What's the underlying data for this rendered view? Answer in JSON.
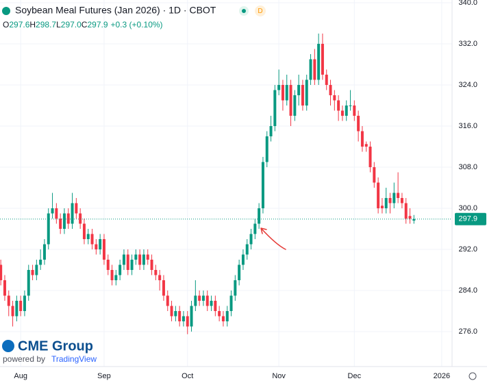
{
  "chart_data": {
    "type": "candlestick",
    "title": "Soybean Meal Futures (Jan 2026) · 1D · CBOT",
    "interval_badge": "D",
    "ohlc_legend": [
      {
        "key": "O",
        "value": "297.6"
      },
      {
        "key": "H",
        "value": "298.7"
      },
      {
        "key": "L",
        "value": "297.0"
      },
      {
        "key": "C",
        "value": "297.9"
      }
    ],
    "change": "+0.3 (+0.10%)",
    "up_color": "#089981",
    "down_color": "#f23645",
    "open": [
      289,
      286,
      283,
      281,
      279,
      282,
      280,
      283,
      288,
      287,
      289,
      290,
      293,
      299,
      300,
      298,
      296,
      299,
      297,
      301,
      299,
      297,
      294,
      295,
      293,
      292,
      294,
      290,
      288,
      286,
      287,
      289,
      291,
      288,
      290,
      291,
      289,
      291,
      290,
      288,
      287,
      286,
      283,
      281,
      279,
      280,
      278,
      279,
      277,
      281,
      283,
      282,
      283,
      281,
      282,
      280,
      279,
      278,
      280,
      283,
      286,
      289,
      291,
      293,
      295,
      297,
      300,
      309,
      314,
      316,
      323,
      324,
      321,
      324,
      318,
      322,
      324,
      320,
      325,
      329,
      325,
      332,
      326,
      324,
      322,
      321,
      319,
      318,
      320,
      320,
      318,
      315,
      312.5,
      312,
      308,
      305,
      300.5,
      300,
      302,
      301,
      303,
      302,
      301,
      298.5,
      297.6
    ],
    "high": [
      290,
      287,
      284,
      282,
      283,
      283,
      284,
      289,
      289,
      290,
      292,
      294,
      300,
      303,
      301,
      299,
      300,
      300,
      303,
      302,
      300,
      298,
      296,
      296,
      294,
      295,
      295,
      291,
      289,
      288,
      290,
      292,
      292,
      291,
      292,
      292,
      292,
      292,
      291,
      289,
      288,
      287,
      284,
      282,
      281,
      281,
      280,
      280,
      282,
      286,
      284,
      284,
      284,
      283,
      283,
      281,
      280,
      281,
      284,
      287,
      290,
      292,
      294,
      296,
      298,
      301,
      310,
      315,
      318,
      324,
      327,
      325,
      326,
      325,
      323,
      326,
      325,
      326,
      330,
      331,
      334,
      334,
      327,
      325,
      323,
      322,
      320,
      321,
      323,
      321,
      319,
      316,
      313,
      313,
      309,
      306,
      302,
      304,
      303,
      305,
      307,
      303,
      302,
      300,
      298.7
    ],
    "low": [
      285,
      282,
      279,
      277,
      278,
      279,
      279,
      282,
      286,
      286,
      288,
      289,
      292,
      298,
      297,
      295,
      295,
      296,
      296,
      298,
      296,
      293,
      293,
      292,
      291,
      291,
      289,
      287,
      285,
      285,
      286,
      288,
      287,
      287,
      289,
      288,
      288,
      289,
      287,
      286,
      284,
      282,
      280,
      278,
      278,
      277,
      277,
      275.5,
      276,
      280,
      281,
      281,
      280,
      280,
      279,
      278,
      277,
      277,
      279,
      282,
      285,
      288,
      290,
      292,
      294,
      296,
      299,
      308,
      313,
      315,
      322,
      319,
      320,
      316,
      317,
      320,
      319,
      319,
      324,
      324,
      324,
      325,
      323,
      320,
      319,
      317,
      317,
      317,
      319,
      317,
      313,
      311,
      311,
      307,
      304,
      299,
      299,
      299,
      299,
      300,
      301,
      300,
      297,
      297,
      297
    ],
    "close": [
      286,
      283,
      281,
      279,
      282,
      280,
      283,
      288,
      287,
      289,
      290,
      293,
      299,
      300,
      298,
      296,
      299,
      297,
      301,
      299,
      297,
      294,
      295,
      293,
      292,
      294,
      290,
      288,
      286,
      287,
      289,
      291,
      288,
      290,
      291,
      289,
      291,
      290,
      288,
      287,
      286,
      283,
      281,
      279,
      280,
      278,
      279,
      277,
      281,
      283,
      282,
      283,
      281,
      282,
      280,
      279,
      278,
      280,
      283,
      286,
      289,
      291,
      293,
      295,
      297,
      300,
      309,
      314,
      316,
      323,
      324,
      321,
      324,
      318,
      322,
      324,
      320,
      325,
      329,
      325,
      332,
      326,
      324,
      322,
      321,
      319,
      318,
      320,
      320,
      318,
      315,
      312,
      312,
      308,
      305,
      300,
      300,
      302,
      301,
      303,
      302,
      301,
      298,
      298,
      297.9
    ],
    "last_price": 297.9,
    "xlim": [
      -0.2,
      113.6
    ],
    "xticks": [
      {
        "value": 5,
        "label": "Aug"
      },
      {
        "value": 26,
        "label": "Sep"
      },
      {
        "value": 47,
        "label": "Oct"
      },
      {
        "value": 70,
        "label": "Nov"
      },
      {
        "value": 89,
        "label": "Dec"
      },
      {
        "value": 111,
        "label": "2026"
      }
    ],
    "ylim": [
      269.2,
      340.53
    ],
    "yticks": [
      {
        "value": 340,
        "label": "340.0"
      },
      {
        "value": 332,
        "label": "332.0"
      },
      {
        "value": 324,
        "label": "324.0"
      },
      {
        "value": 316,
        "label": "316.0"
      },
      {
        "value": 308,
        "label": "308.0"
      },
      {
        "value": 300,
        "label": "300.0"
      },
      {
        "value": 292,
        "label": "292.0"
      },
      {
        "value": 284,
        "label": "284.0"
      },
      {
        "value": 276,
        "label": "276.0"
      }
    ],
    "grid": true,
    "brand": "CME Group",
    "powered_by": "powered by",
    "platform": "TradingView"
  }
}
